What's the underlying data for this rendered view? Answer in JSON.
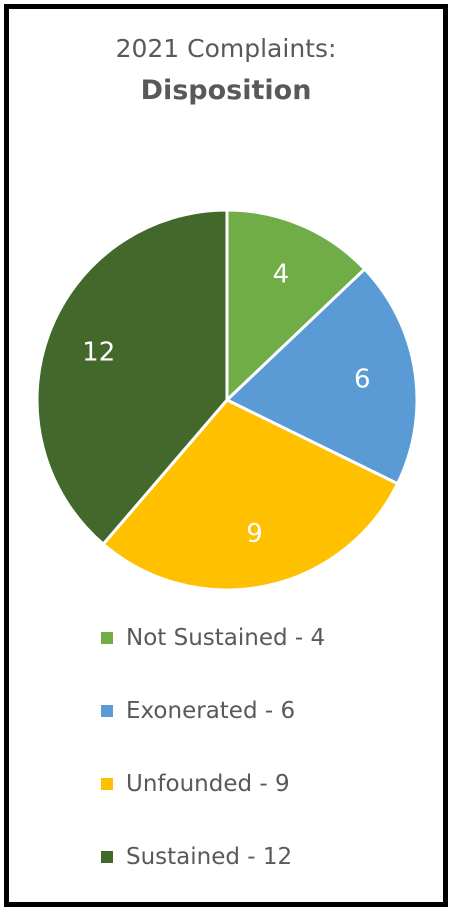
{
  "chart_data": {
    "type": "pie",
    "title": "2021 Complaints:",
    "subtitle": "Disposition",
    "slices": [
      {
        "label": "Not Sustained",
        "value": 4,
        "color": "#70AD47",
        "legend": "Not Sustained - 4"
      },
      {
        "label": "Exonerated",
        "value": 6,
        "color": "#5B9BD5",
        "legend": "Exonerated - 6"
      },
      {
        "label": "Unfounded",
        "value": 9,
        "color": "#FFC000",
        "legend": "Unfounded - 9"
      },
      {
        "label": "Sustained",
        "value": 12,
        "color": "#43682B",
        "legend": "Sustained - 12"
      }
    ],
    "legend_position": "bottom"
  }
}
